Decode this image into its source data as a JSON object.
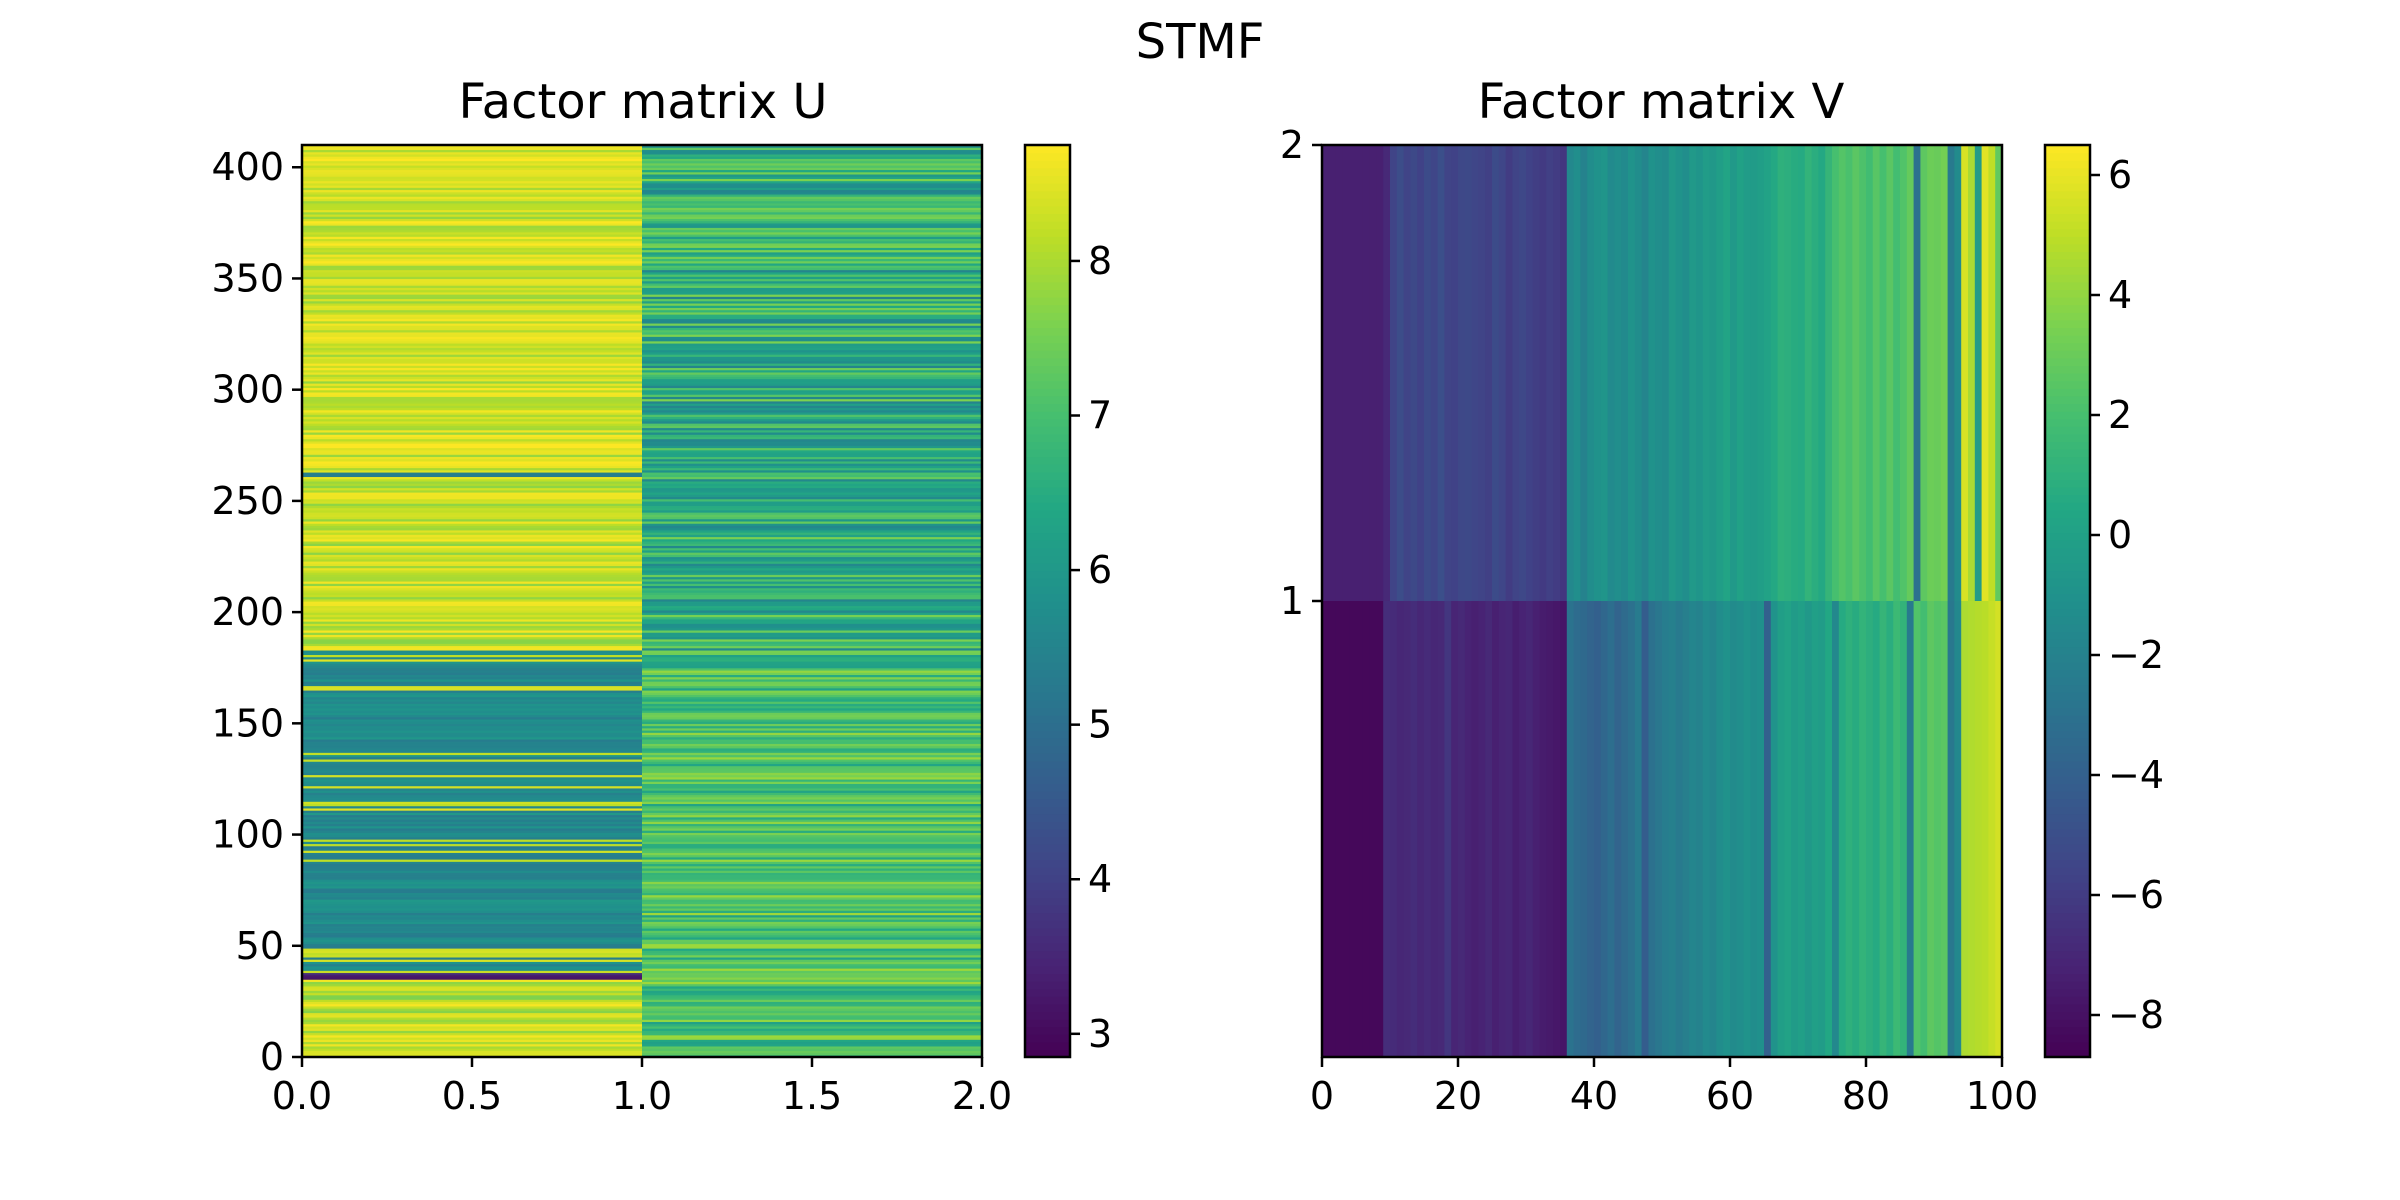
{
  "chart_data": {
    "suptitle": "STMF",
    "panels": [
      {
        "type": "heatmap",
        "title": "Factor matrix U",
        "colormap": "viridis",
        "xlim": [
          0,
          2
        ],
        "ylim": [
          0,
          410
        ],
        "n_rows": 410,
        "n_cols": 2,
        "xticks": [
          0,
          0.5,
          1,
          1.5,
          2
        ],
        "xtick_labels": [
          "0.0",
          "0.5",
          "1.0",
          "1.5",
          "2.0"
        ],
        "yticks": [
          0,
          50,
          100,
          150,
          200,
          250,
          300,
          350,
          400
        ],
        "ytick_labels": [
          "0",
          "50",
          "100",
          "150",
          "200",
          "250",
          "300",
          "350",
          "400"
        ],
        "colorbar": {
          "vmin": 2.85,
          "vmax": 8.75,
          "ticks": [
            3,
            4,
            5,
            6,
            7,
            8
          ],
          "tick_labels": [
            "3",
            "4",
            "5",
            "6",
            "7",
            "8"
          ]
        },
        "column_profiles": [
          {
            "column": "0–1",
            "segments": [
              {
                "rows": [
                  0,
                  35
                ],
                "typical": 8.3,
                "low": 7.6,
                "high": 8.7
              },
              {
                "rows": [
                  35,
                  38
                ],
                "typical": 3.4,
                "low": 3.0,
                "high": 3.9
              },
              {
                "rows": [
                  38,
                  183
                ],
                "typical": 5.6,
                "low": 5.3,
                "high": 6.0,
                "bright_streak_rate": 0.12,
                "streak_value": 8.5
              },
              {
                "rows": [
                  183,
                  261
                ],
                "typical": 8.2,
                "low": 7.7,
                "high": 8.7
              },
              {
                "rows": [
                  261,
                  263
                ],
                "typical": 5.4,
                "low": 5.2,
                "high": 5.6
              },
              {
                "rows": [
                  263,
                  410
                ],
                "typical": 8.4,
                "low": 7.8,
                "high": 8.75
              }
            ]
          },
          {
            "column": "1–2",
            "segments": [
              {
                "rows": [
                  0,
                  183
                ],
                "typical": 7.2,
                "low": 6.2,
                "high": 7.9
              },
              {
                "rows": [
                  183,
                  410
                ],
                "typical": 6.5,
                "low": 5.5,
                "high": 7.6
              }
            ]
          }
        ]
      },
      {
        "type": "heatmap",
        "title": "Factor matrix V",
        "colormap": "viridis",
        "xlim": [
          0,
          100
        ],
        "ylim": [
          0,
          2
        ],
        "n_rows": 2,
        "n_cols": 100,
        "xticks": [
          0,
          20,
          40,
          60,
          80,
          100
        ],
        "xtick_labels": [
          "0",
          "20",
          "40",
          "60",
          "80",
          "100"
        ],
        "yticks": [
          1,
          2
        ],
        "ytick_labels": [
          "1",
          "2"
        ],
        "colorbar": {
          "vmin": -8.7,
          "vmax": 6.5,
          "ticks": [
            -8,
            -6,
            -4,
            -2,
            0,
            2,
            4,
            6
          ],
          "tick_labels": [
            "−8",
            "−6",
            "−4",
            "−2",
            "0",
            "2",
            "4",
            "6"
          ]
        },
        "row_values": [
          [
            -7.3,
            -7.3,
            -7.3,
            -7.3,
            -7.3,
            -7.3,
            -7.3,
            -7.3,
            -7.3,
            -6.9,
            -5.6,
            -5.1,
            -5.6,
            -5.3,
            -5.7,
            -5.2,
            -5.5,
            -5.0,
            -5.6,
            -5.7,
            -5.4,
            -5.3,
            -5.5,
            -5.6,
            -5.8,
            -5.2,
            -5.5,
            -6.0,
            -5.6,
            -5.4,
            -5.7,
            -5.9,
            -6.1,
            -5.8,
            -6.0,
            -6.3,
            -1.6,
            -1.2,
            -2.0,
            -1.3,
            -1.0,
            -0.8,
            -1.5,
            -1.2,
            -1.5,
            -0.9,
            -1.3,
            -1.8,
            -1.0,
            -1.2,
            -1.4,
            -0.6,
            -0.9,
            -1.2,
            -0.5,
            -0.8,
            -0.3,
            -0.6,
            -0.2,
            0.2,
            -0.5,
            0.0,
            -0.3,
            -0.4,
            -0.2,
            0.1,
            0.5,
            1.0,
            0.9,
            0.7,
            0.6,
            1.2,
            0.8,
            0.5,
            1.3,
            2.0,
            2.4,
            2.1,
            2.6,
            2.2,
            1.8,
            2.5,
            2.0,
            2.6,
            1.9,
            2.3,
            2.9,
            -3.0,
            2.7,
            3.1,
            3.0,
            3.3,
            -2.5,
            -1.4,
            5.6,
            4.5,
            -0.4,
            5.8,
            5.0,
            2.8
          ],
          [
            -8.4,
            -8.4,
            -8.4,
            -8.4,
            -8.4,
            -8.4,
            -8.4,
            -8.4,
            -8.4,
            -6.7,
            -6.8,
            -7.0,
            -6.9,
            -6.7,
            -7.0,
            -6.8,
            -7.0,
            -6.9,
            -6.3,
            -7.1,
            -6.9,
            -7.2,
            -7.3,
            -7.2,
            -6.9,
            -7.3,
            -7.1,
            -7.0,
            -7.4,
            -7.2,
            -7.0,
            -7.3,
            -7.5,
            -7.6,
            -7.7,
            -7.8,
            -2.9,
            -3.3,
            -3.5,
            -3.8,
            -4.0,
            -3.6,
            -3.2,
            -3.8,
            -3.4,
            -3.0,
            -2.4,
            -4.2,
            -3.0,
            -2.7,
            -2.3,
            -2.1,
            -2.5,
            -2.2,
            -1.8,
            -2.0,
            -1.5,
            -1.8,
            -1.3,
            -1.0,
            -1.4,
            -1.2,
            -0.9,
            -1.3,
            -1.1,
            -4.0,
            -0.9,
            -0.2,
            0.1,
            -0.4,
            -0.1,
            -0.6,
            -0.1,
            -0.3,
            0.4,
            -1.6,
            0.6,
            1.0,
            0.7,
            1.2,
            0.9,
            0.6,
            1.3,
            0.8,
            1.6,
            1.2,
            -2.5,
            2.3,
            1.9,
            2.7,
            2.4,
            2.6,
            -2.6,
            -1.6,
            4.6,
            4.7,
            4.8,
            4.9,
            5.2,
            5.5
          ]
        ]
      }
    ]
  }
}
